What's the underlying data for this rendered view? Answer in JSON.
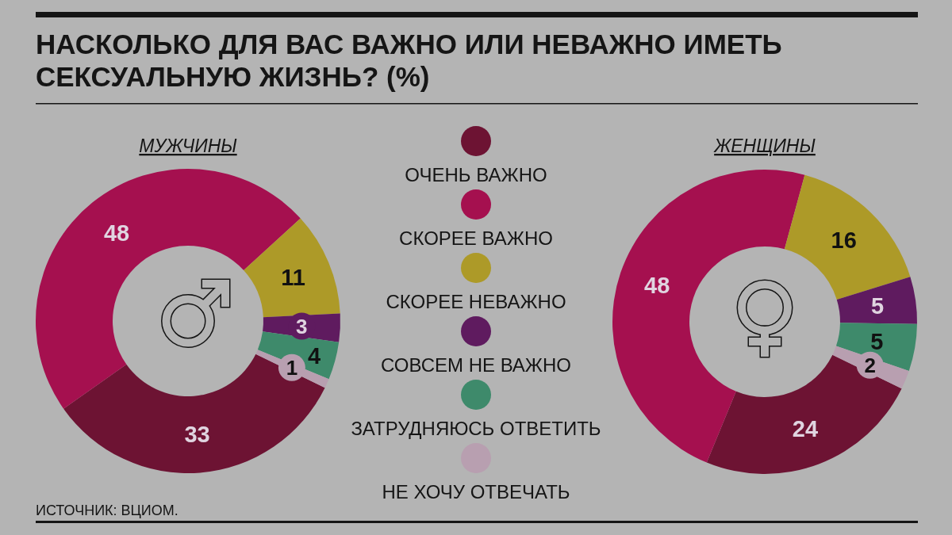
{
  "chart_data": {
    "type": "donut",
    "title": "НАСКОЛЬКО ДЛЯ ВАС ВАЖНО ИЛИ НЕВАЖНО ИМЕТЬ СЕКСУАЛЬНУЮ ЖИЗНЬ? (%)",
    "categories": [
      "ОЧЕНЬ ВАЖНО",
      "СКОРЕЕ ВАЖНО",
      "СКОРЕЕ НЕВАЖНО",
      "СОВСЕМ НЕ ВАЖНО",
      "ЗАТРУДНЯЮСЬ ОТВЕТИТЬ",
      "НЕ ХОЧУ ОТВЕЧАТЬ"
    ],
    "colors": [
      "#6d1333",
      "#a5104f",
      "#ad9a28",
      "#5f1b5f",
      "#3e8a6b",
      "#b89fb0"
    ],
    "series": [
      {
        "name": "МУЖЧИНЫ",
        "values": [
          33,
          48,
          11,
          3,
          4,
          1
        ]
      },
      {
        "name": "ЖЕНЩИНЫ",
        "values": [
          24,
          48,
          16,
          5,
          5,
          2
        ]
      }
    ],
    "data_labels": true,
    "legend": "right",
    "annotations": [
      "ИСТОЧНИК: ВЦИОМ."
    ]
  }
}
